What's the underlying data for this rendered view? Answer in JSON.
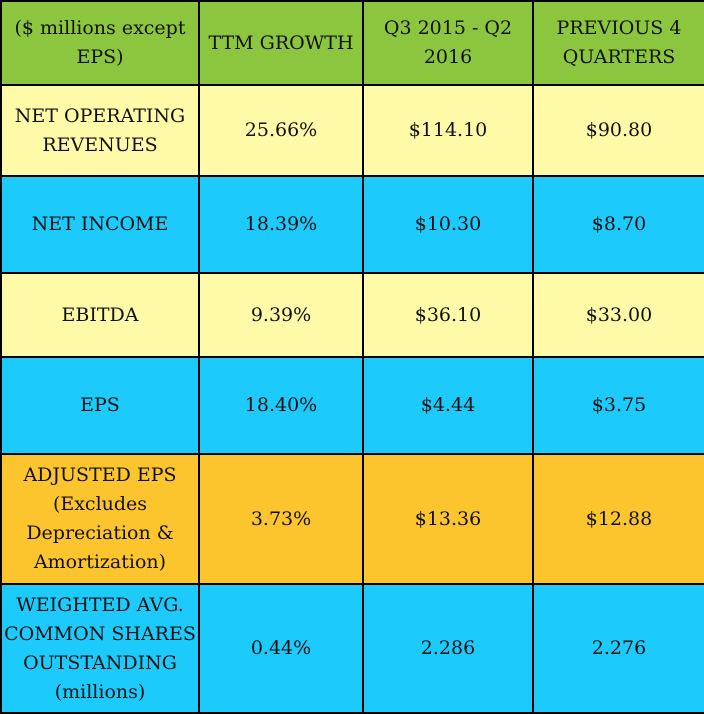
{
  "header": {
    "col1": "($ millions except\nEPS)",
    "col2": "TTM GROWTH",
    "col3": "Q3 2015 - Q2\n2016",
    "col4": "PREVIOUS 4\nQUARTERS"
  },
  "rows": [
    {
      "metric": "NET OPERATING\nREVENUES",
      "growth": "25.66%",
      "current": "$114.10",
      "previous": "$90.80"
    },
    {
      "metric": "NET INCOME",
      "growth": "18.39%",
      "current": "$10.30",
      "previous": "$8.70"
    },
    {
      "metric": "EBITDA",
      "growth": "9.39%",
      "current": "$36.10",
      "previous": "$33.00"
    },
    {
      "metric": "EPS",
      "growth": "18.40%",
      "current": "$4.44",
      "previous": "$3.75"
    },
    {
      "metric": "ADJUSTED EPS\n(Excludes\nDepreciation &\nAmortization)",
      "growth": "3.73%",
      "current": "$13.36",
      "previous": "$12.88"
    },
    {
      "metric": "WEIGHTED AVG.\nCOMMON SHARES\nOUTSTANDING\n(millions)",
      "growth": "0.44%",
      "current": "2.286",
      "previous": "2.276"
    }
  ],
  "colors": {
    "header_bg": "#8cc63e",
    "yellow_row": "#fefaa8",
    "blue_row": "#1ccafb",
    "orange_row": "#fcc52e",
    "border": "#000000"
  }
}
